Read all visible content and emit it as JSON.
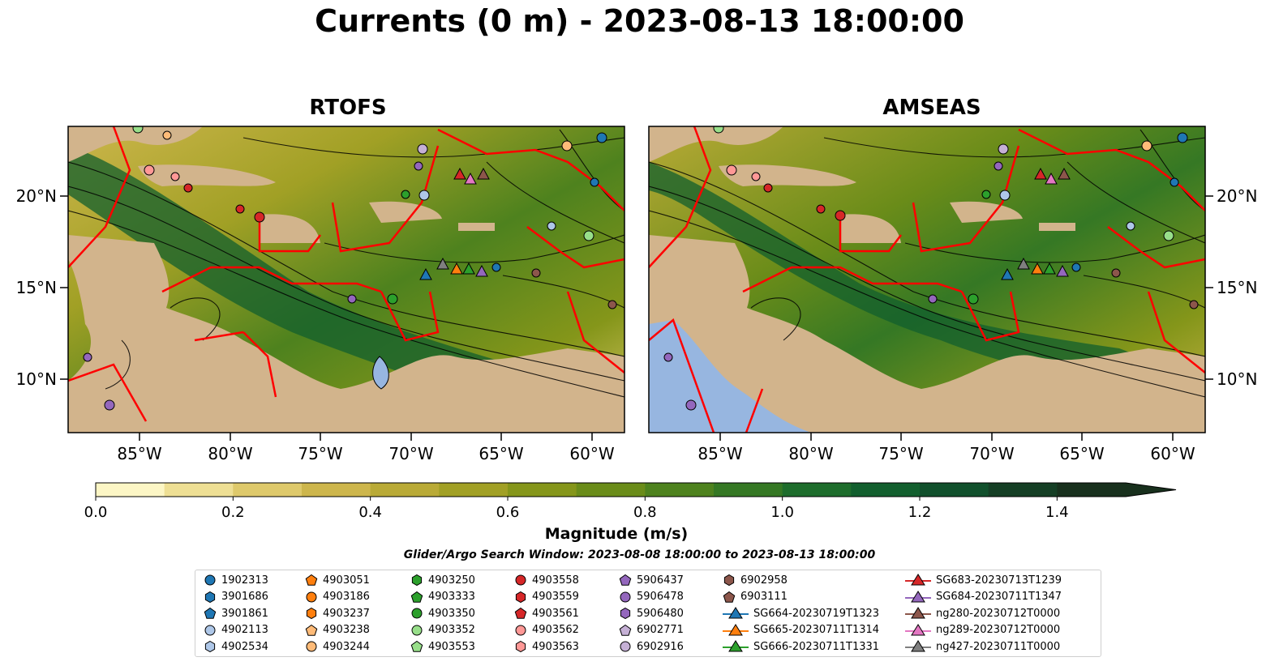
{
  "title": "Currents (0 m) - 2023-08-13 18:00:00",
  "chart_data": {
    "type": "heatmap",
    "panels": [
      {
        "title": "RTOFS"
      },
      {
        "title": "AMSEAS"
      }
    ],
    "lat_ticks": [
      "20°N",
      "15°N",
      "10°N"
    ],
    "lon_ticks": [
      "85°W",
      "80°W",
      "75°W",
      "70°W",
      "65°W",
      "60°W"
    ],
    "colorbar": {
      "label": "Magnitude (m/s)",
      "ticks": [
        "0.0",
        "0.2",
        "0.4",
        "0.6",
        "0.8",
        "1.0",
        "1.2",
        "1.4"
      ],
      "range": [
        0,
        1.5
      ],
      "extend": "max",
      "colors": [
        "#fcf6c5",
        "#eedf94",
        "#dec96b",
        "#cdb64c",
        "#b9aa36",
        "#a1a025",
        "#85961a",
        "#6a8c19",
        "#4e821e",
        "#357824",
        "#1e6d2c",
        "#125f2e",
        "#11502c",
        "#153f25",
        "#18301d"
      ]
    },
    "search_window": "Glider/Argo Search Window: 2023-08-08 18:00:00 to 2023-08-13 18:00:00",
    "legend": [
      {
        "label": "1902313",
        "marker": "circle",
        "color": "#1f77b4"
      },
      {
        "label": "3901686",
        "marker": "hexagon",
        "color": "#1f77b4"
      },
      {
        "label": "3901861",
        "marker": "pentagon",
        "color": "#1f77b4"
      },
      {
        "label": "4902113",
        "marker": "circle",
        "color": "#aec7e8"
      },
      {
        "label": "4902534",
        "marker": "hexagon",
        "color": "#aec7e8"
      },
      {
        "label": "4903051",
        "marker": "pentagon",
        "color": "#ff7f0e"
      },
      {
        "label": "4903186",
        "marker": "circle",
        "color": "#ff7f0e"
      },
      {
        "label": "4903237",
        "marker": "hexagon",
        "color": "#ff7f0e"
      },
      {
        "label": "4903238",
        "marker": "pentagon",
        "color": "#ffbb78"
      },
      {
        "label": "4903244",
        "marker": "circle",
        "color": "#ffbb78"
      },
      {
        "label": "4903250",
        "marker": "hexagon",
        "color": "#2ca02c"
      },
      {
        "label": "4903333",
        "marker": "pentagon",
        "color": "#2ca02c"
      },
      {
        "label": "4903350",
        "marker": "circle",
        "color": "#2ca02c"
      },
      {
        "label": "4903352",
        "marker": "circle",
        "color": "#98df8a"
      },
      {
        "label": "4903553",
        "marker": "pentagon",
        "color": "#98df8a"
      },
      {
        "label": "4903558",
        "marker": "circle",
        "color": "#d62728"
      },
      {
        "label": "4903559",
        "marker": "hexagon",
        "color": "#d62728"
      },
      {
        "label": "4903561",
        "marker": "pentagon",
        "color": "#d62728"
      },
      {
        "label": "4903562",
        "marker": "circle",
        "color": "#ff9896"
      },
      {
        "label": "4903563",
        "marker": "hexagon",
        "color": "#ff9896"
      },
      {
        "label": "5906437",
        "marker": "pentagon",
        "color": "#9467bd"
      },
      {
        "label": "5906478",
        "marker": "circle",
        "color": "#9467bd"
      },
      {
        "label": "5906480",
        "marker": "hexagon",
        "color": "#9467bd"
      },
      {
        "label": "6902771",
        "marker": "pentagon",
        "color": "#c5b0d5"
      },
      {
        "label": "6902916",
        "marker": "circle",
        "color": "#c5b0d5"
      },
      {
        "label": "6902958",
        "marker": "hexagon",
        "color": "#8c564b"
      },
      {
        "label": "6903111",
        "marker": "pentagon",
        "color": "#8c564b"
      },
      {
        "label": "SG664-20230719T1323",
        "marker": "triangle-line",
        "color": "#1f77b4"
      },
      {
        "label": "SG665-20230711T1314",
        "marker": "triangle-line",
        "color": "#ff7f0e"
      },
      {
        "label": "SG666-20230711T1331",
        "marker": "triangle-line",
        "color": "#2ca02c"
      },
      {
        "label": "SG683-20230713T1239",
        "marker": "triangle-line",
        "color": "#d62728"
      },
      {
        "label": "SG684-20230711T1347",
        "marker": "triangle-line",
        "color": "#9467bd"
      },
      {
        "label": "ng280-20230712T0000",
        "marker": "triangle-line",
        "color": "#8c564b"
      },
      {
        "label": "ng289-20230712T0000",
        "marker": "triangle-line",
        "color": "#e377c2"
      },
      {
        "label": "ng427-20230711T0000",
        "marker": "triangle-line",
        "color": "#7f7f7f"
      }
    ]
  }
}
